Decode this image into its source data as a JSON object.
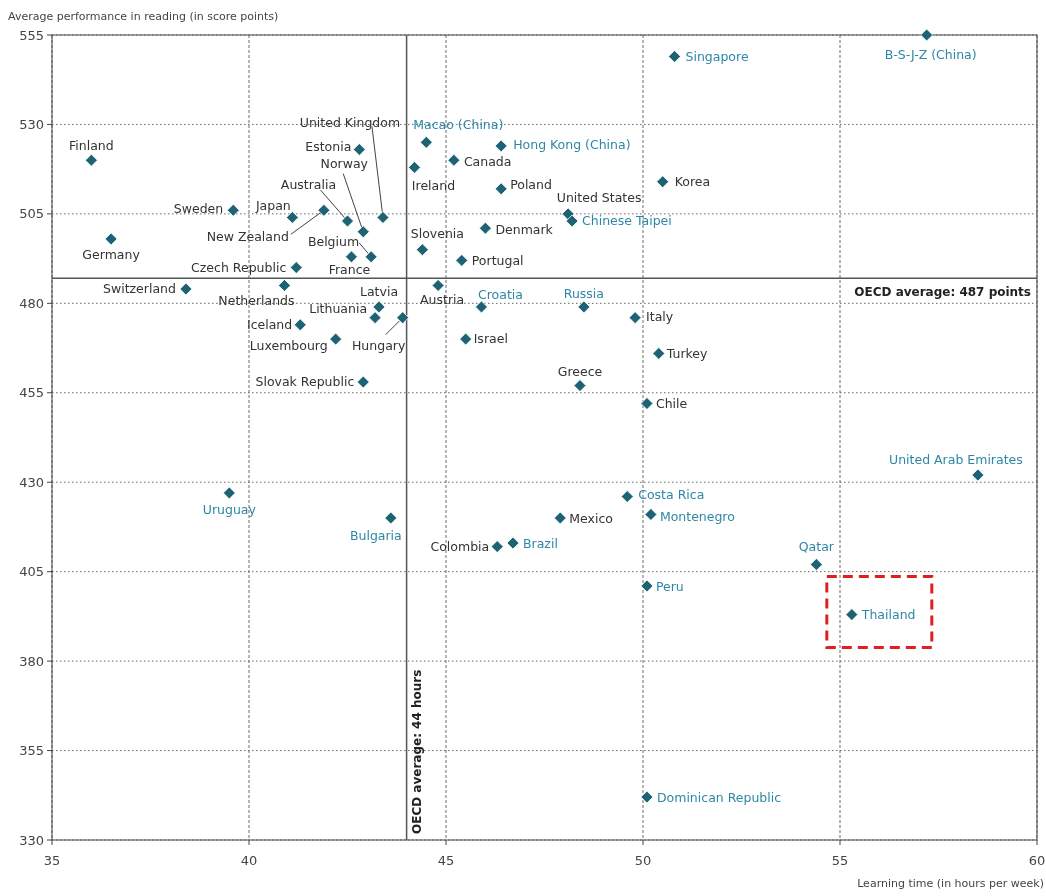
{
  "chart_data": {
    "type": "scatter",
    "xlabel": "Learning time (in hours per week)",
    "ylabel": "Average performance in reading (in score points)",
    "xlim": [
      35,
      60
    ],
    "xticks": [
      35,
      40,
      45,
      50,
      55,
      60
    ],
    "ylim": [
      330,
      555
    ],
    "yticks": [
      330,
      355,
      380,
      405,
      430,
      455,
      480,
      505,
      530,
      555
    ],
    "grid": true,
    "marker": "diamond",
    "ref_lines": [
      {
        "axis": "x",
        "value": 44,
        "label": "OECD average: 44 hours",
        "color": "#555555"
      },
      {
        "axis": "y",
        "value": 487,
        "label": "OECD average: 487 points",
        "color": "#555555"
      }
    ],
    "series": [
      {
        "color": "#1e6373",
        "x": [
          36.0,
          36.5,
          39.6,
          38.4,
          41.1,
          41.9,
          42.5,
          42.8,
          43.4,
          42.9,
          43.1,
          42.6,
          41.2,
          40.9,
          41.3,
          42.2,
          43.2,
          43.3,
          43.9,
          42.9,
          44.2,
          45.2,
          44.4,
          44.8,
          46.4,
          46.0,
          45.4,
          45.5,
          48.1,
          50.5,
          49.8,
          50.4,
          48.4,
          50.1,
          47.9,
          46.3
        ],
        "values": [
          520,
          498,
          506,
          484,
          504,
          506,
          503,
          523,
          504,
          500,
          493,
          493,
          490,
          485,
          474,
          470,
          476,
          479,
          476,
          458,
          518,
          520,
          495,
          485,
          512,
          501,
          492,
          470,
          505,
          514,
          476,
          466,
          457,
          452,
          420,
          412
        ],
        "value_labels": [
          "Finland",
          "Germany",
          "Sweden",
          "Switzerland",
          "Japan",
          "New Zealand",
          "Australia",
          "Estonia",
          "United Kingdom",
          "Norway",
          "Belgium",
          "France",
          "Czech Republic",
          "Netherlands",
          "Iceland",
          "Luxembourg",
          "Lithuania",
          "Latvia",
          "Hungary",
          "Slovak Republic",
          "Ireland",
          "Canada",
          "Slovenia",
          "Austria",
          "Poland",
          "Denmark",
          "Portugal",
          "Israel",
          "United States",
          "Korea",
          "Italy",
          "Turkey",
          "Greece",
          "Chile",
          "Mexico",
          "Colombia"
        ]
      },
      {
        "color": "#1e6373",
        "x": [
          57.2,
          50.8,
          44.5,
          46.4,
          48.2,
          45.9,
          48.5,
          39.5,
          43.6,
          46.7,
          49.6,
          50.2,
          58.5,
          54.4,
          50.1,
          55.3,
          50.1
        ],
        "values": [
          555,
          549,
          525,
          524,
          503,
          479,
          479,
          427,
          420,
          413,
          426,
          421,
          432,
          407,
          401,
          393,
          342
        ],
        "value_labels": [
          "B-S-J-Z (China)",
          "Singapore",
          "Macao (China)",
          "Hong Kong (China)",
          "Chinese Taipei",
          "Croatia",
          "Russia",
          "Uruguay",
          "Bulgaria",
          "Brazil",
          "Costa Rica",
          "Montenegro",
          "United Arab Emirates",
          "Qatar",
          "Peru",
          "Thailand",
          "Dominican Republic"
        ]
      }
    ]
  }
}
